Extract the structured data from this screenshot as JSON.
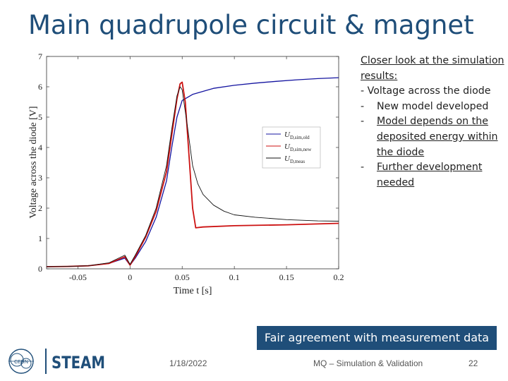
{
  "slide": {
    "title": "Main quadrupole circuit & magnet",
    "notes": {
      "heading": "Closer look at the simulation results:",
      "item1": "- Voltage across the diode",
      "sub1_dash": "-",
      "sub1": "New model developed",
      "sub2_dash": "-",
      "sub2": "Model depends on the deposited energy within the diode",
      "sub3_dash": "-",
      "sub3": "Further development needed"
    },
    "banner": "Fair agreement with measurement data",
    "footer": {
      "date": "1/18/2022",
      "center": "MQ – Simulation & Validation",
      "page": "22"
    },
    "logos": {
      "cern": "CERN",
      "steam": "STEAM"
    }
  },
  "chart_data": {
    "type": "line",
    "xlabel": "Time t [s]",
    "ylabel": "Voltage across the diode [V]",
    "xlim": [
      -0.08,
      0.2
    ],
    "ylim": [
      0,
      7
    ],
    "xticks": [
      -0.05,
      0,
      0.05,
      0.1,
      0.15,
      0.2
    ],
    "xtick_labels": [
      "-0.05",
      "0",
      "0.05",
      "0.1",
      "0.15",
      "0.2"
    ],
    "yticks": [
      0,
      1,
      2,
      3,
      4,
      5,
      6,
      7
    ],
    "ytick_labels": [
      "0",
      "1",
      "2",
      "3",
      "4",
      "5",
      "6",
      "7"
    ],
    "grid": false,
    "legend_position": "center",
    "series": [
      {
        "name": "U_D,sim,old",
        "label_main": "U",
        "label_sub": "D,sim,old",
        "color": "#1414a0",
        "x": [
          -0.08,
          -0.06,
          -0.04,
          -0.02,
          -0.005,
          0,
          0.005,
          0.015,
          0.025,
          0.035,
          0.04,
          0.045,
          0.05,
          0.06,
          0.08,
          0.1,
          0.12,
          0.14,
          0.16,
          0.18,
          0.2
        ],
        "y": [
          0.07,
          0.08,
          0.1,
          0.18,
          0.35,
          0.12,
          0.35,
          0.9,
          1.7,
          2.9,
          4.0,
          5.0,
          5.55,
          5.75,
          5.95,
          6.05,
          6.12,
          6.18,
          6.23,
          6.27,
          6.3
        ]
      },
      {
        "name": "U_D,sim,new",
        "label_main": "U",
        "label_sub": "D,sim,new",
        "color": "#cc1111",
        "x": [
          -0.08,
          -0.06,
          -0.04,
          -0.02,
          -0.005,
          0,
          0.005,
          0.015,
          0.025,
          0.035,
          0.04,
          0.045,
          0.048,
          0.05,
          0.053,
          0.056,
          0.06,
          0.063,
          0.07,
          0.1,
          0.15,
          0.2
        ],
        "y": [
          0.07,
          0.08,
          0.1,
          0.18,
          0.4,
          0.12,
          0.4,
          1.05,
          1.9,
          3.2,
          4.4,
          5.6,
          6.1,
          6.15,
          5.5,
          4.0,
          2.0,
          1.35,
          1.38,
          1.42,
          1.45,
          1.5
        ]
      },
      {
        "name": "U_D,meas",
        "label_main": "U",
        "label_sub": "D,meas",
        "color": "#111111",
        "x": [
          -0.08,
          -0.06,
          -0.04,
          -0.02,
          -0.005,
          0,
          0.005,
          0.015,
          0.025,
          0.035,
          0.04,
          0.045,
          0.048,
          0.05,
          0.055,
          0.06,
          0.065,
          0.07,
          0.08,
          0.09,
          0.1,
          0.12,
          0.15,
          0.18,
          0.2
        ],
        "y": [
          0.07,
          0.08,
          0.1,
          0.2,
          0.45,
          0.15,
          0.45,
          1.1,
          2.0,
          3.4,
          4.6,
          5.7,
          6.0,
          5.9,
          4.7,
          3.4,
          2.8,
          2.45,
          2.1,
          1.9,
          1.78,
          1.7,
          1.62,
          1.58,
          1.57
        ]
      }
    ]
  }
}
